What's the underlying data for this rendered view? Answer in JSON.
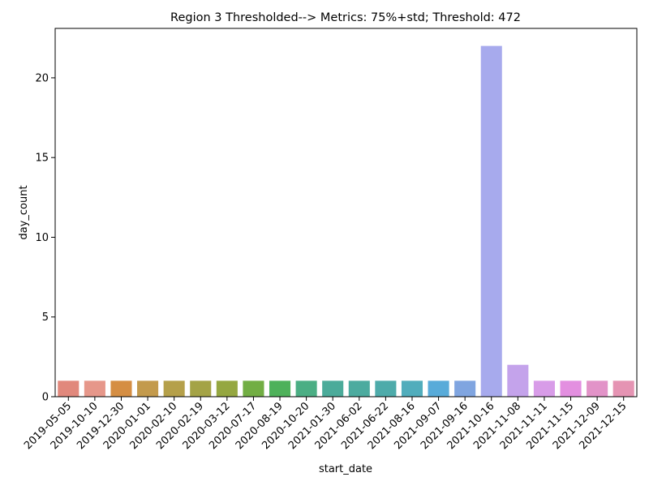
{
  "chart_data": {
    "type": "bar",
    "title": "Region 3 Thresholded--> Metrics: 75%+std; Threshold: 472",
    "xlabel": "start_date",
    "ylabel": "day_count",
    "ylim": [
      0,
      23.1
    ],
    "yticks": [
      0,
      5,
      10,
      15,
      20
    ],
    "grid": false,
    "categories": [
      "2019-05-05",
      "2019-10-10",
      "2019-12-30",
      "2020-01-01",
      "2020-02-10",
      "2020-02-19",
      "2020-03-12",
      "2020-07-17",
      "2020-08-19",
      "2020-10-20",
      "2021-01-30",
      "2021-06-02",
      "2021-06-22",
      "2021-08-16",
      "2021-09-07",
      "2021-09-16",
      "2021-10-16",
      "2021-11-08",
      "2021-11-11",
      "2021-11-15",
      "2021-12-09",
      "2021-12-15"
    ],
    "values": [
      1,
      1,
      1,
      1,
      1,
      1,
      1,
      1,
      1,
      1,
      1,
      1,
      1,
      1,
      1,
      1,
      22,
      2,
      1,
      1,
      1,
      1
    ],
    "colors": [
      "#e1887c",
      "#e6978a",
      "#d58e43",
      "#c39a4c",
      "#b5a04a",
      "#a4a346",
      "#95a741",
      "#72ae44",
      "#4eb15a",
      "#4bae84",
      "#4bab9a",
      "#4cab9f",
      "#4eabaa",
      "#51adbc",
      "#58abd9",
      "#80a5e0",
      "#a7aaed",
      "#c4a3eb",
      "#d89ce8",
      "#e38fe0",
      "#e293c8",
      "#e594b3"
    ]
  }
}
